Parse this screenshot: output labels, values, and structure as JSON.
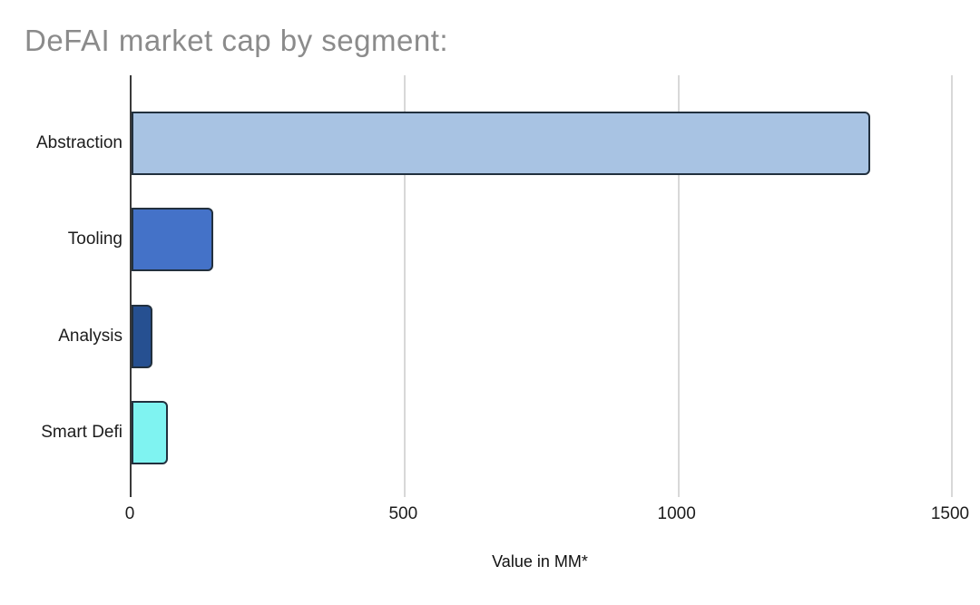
{
  "chart_data": {
    "type": "bar",
    "orientation": "horizontal",
    "title": "DeFAI market cap by segment:",
    "title_color": "#8b8b8b",
    "xlabel": "Value in MM*",
    "categories": [
      "Abstraction",
      "Tooling",
      "Analysis",
      "Smart Defi"
    ],
    "values": [
      1350,
      150,
      38,
      66
    ],
    "bar_colors": [
      "#a8c3e3",
      "#4472c8",
      "#265091",
      "#7ff3f1"
    ],
    "bar_border_color": "#22303e",
    "xlim": [
      0,
      1500
    ],
    "x_ticks": [
      0,
      500,
      1000,
      1500
    ],
    "grid": true,
    "gridline_color": "#d8d8d8",
    "axis_color": "#3a3a3a",
    "label_color": "#1c1c1c",
    "legend": "none",
    "background": "#ffffff"
  }
}
